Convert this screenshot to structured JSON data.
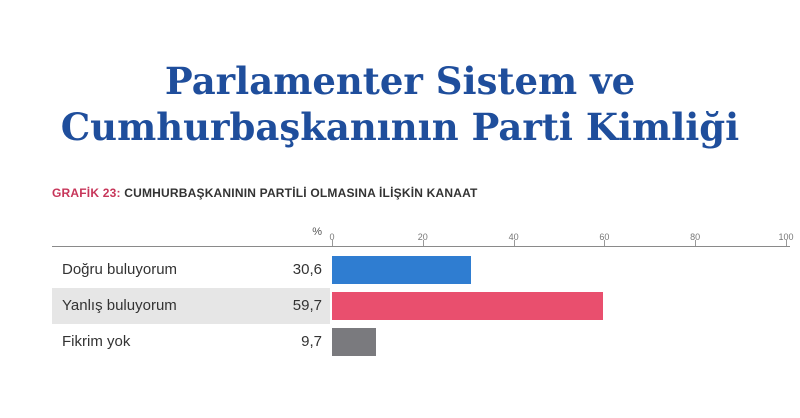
{
  "title_line1": "Parlamenter Sistem ve",
  "title_line2": "Cumhurbaşkanının Parti Kimliği",
  "subtitle_prefix": "GRAFİK 23:",
  "subtitle_text": "CUMHURBAŞKANININ PARTİLİ OLMASINA İLİŞKİN KANAAT",
  "colors": {
    "title": "#1f4e9c",
    "accent_pink": "#c7365a",
    "row_shade": "#e6e6e6"
  },
  "chart_data": {
    "type": "bar",
    "orientation": "horizontal",
    "unit_label": "%",
    "xlim": [
      0,
      100
    ],
    "ticks": [
      "0",
      "20",
      "40",
      "60",
      "80",
      "100"
    ],
    "categories": [
      "Doğru buluyorum",
      "Yanlış buluyorum",
      "Fikrim yok"
    ],
    "values": [
      30.6,
      59.7,
      9.7
    ],
    "value_labels": [
      "30,6",
      "59,7",
      "9,7"
    ],
    "bar_colors": [
      "#2f7dd1",
      "#e94f6e",
      "#7a7a7e"
    ],
    "shaded_rows": [
      false,
      true,
      false
    ]
  }
}
